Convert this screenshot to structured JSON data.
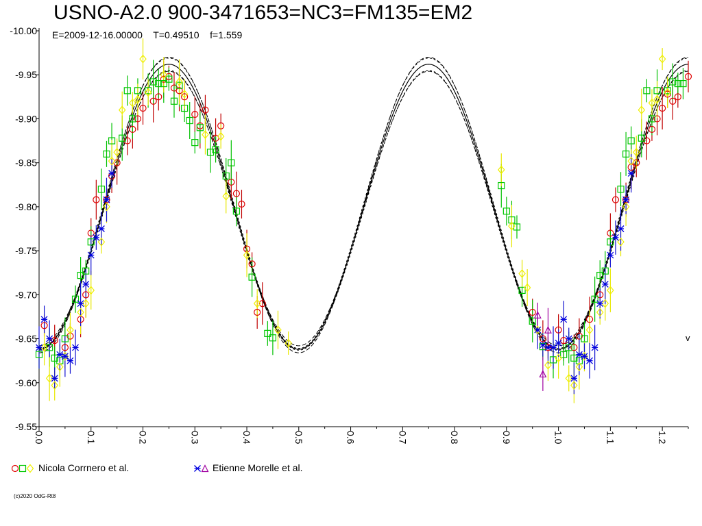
{
  "chart_data": {
    "type": "scatter",
    "title": "USNO-A2.0 900-3471653=NC3=FM135=EM2",
    "subtitle": "E=2009-12-16.00000    T=0.49510    f=1.559",
    "x_range": [
      0.0,
      1.25
    ],
    "y_range": [
      -10.0,
      -9.55
    ],
    "y_ticks": [
      "-10.00",
      "-9.95",
      "-9.90",
      "-9.85",
      "-9.80",
      "-9.75",
      "-9.70",
      "-9.65",
      "-9.60",
      "-9.55"
    ],
    "x_ticks": [
      "0.0",
      "0.1",
      "0.2",
      "0.3",
      "0.4",
      "0.5",
      "0.6",
      "0.7",
      "0.8",
      "0.9",
      "1.0",
      "1.1",
      "1.2"
    ],
    "model": {
      "mean": -9.8,
      "amplitude": 0.162,
      "peak_phase": 0.25
    },
    "legend": [
      {
        "label": "Nicola Corrnero et al.",
        "markers": [
          "circle",
          "square",
          "diamond"
        ],
        "colors": [
          "#e00000",
          "#00c800",
          "#f0f000"
        ]
      },
      {
        "label": "Etienne Morelle et al.",
        "markers": [
          "star",
          "triangle"
        ],
        "colors": [
          "#0000e0",
          "#a000a0"
        ]
      }
    ],
    "series": [
      {
        "marker": "circle",
        "color": "#e00000",
        "err_color": "#c00000",
        "points": [
          [
            0.01,
            -9.665
          ],
          [
            0.03,
            -9.648
          ],
          [
            0.05,
            -9.64
          ],
          [
            0.06,
            -9.653
          ],
          [
            0.08,
            -9.672
          ],
          [
            0.09,
            -9.7
          ],
          [
            0.1,
            -9.77
          ],
          [
            0.11,
            -9.808
          ],
          [
            0.13,
            -9.808
          ],
          [
            0.14,
            -9.835
          ],
          [
            0.15,
            -9.85
          ],
          [
            0.17,
            -9.875
          ],
          [
            0.18,
            -9.888
          ],
          [
            0.19,
            -9.9
          ],
          [
            0.2,
            -9.912
          ],
          [
            0.22,
            -9.92
          ],
          [
            0.23,
            -9.925
          ],
          [
            0.24,
            -9.945
          ],
          [
            0.25,
            -9.948
          ],
          [
            0.26,
            -9.935
          ],
          [
            0.27,
            -9.932
          ],
          [
            0.28,
            -9.925
          ],
          [
            0.3,
            -9.905
          ],
          [
            0.31,
            -9.892
          ],
          [
            0.32,
            -9.91
          ],
          [
            0.34,
            -9.878
          ],
          [
            0.35,
            -9.892
          ],
          [
            0.37,
            -9.828
          ],
          [
            0.38,
            -9.815
          ],
          [
            0.39,
            -9.803
          ],
          [
            0.4,
            -9.752
          ],
          [
            0.41,
            -9.735
          ],
          [
            0.42,
            -9.68
          ],
          [
            0.43,
            -9.69
          ],
          [
            0.95,
            -9.68
          ],
          [
            0.97,
            -9.65
          ],
          [
            0.98,
            -9.64
          ],
          [
            1.0,
            -9.66
          ],
          [
            1.01,
            -9.648
          ],
          [
            1.03,
            -9.64
          ],
          [
            1.04,
            -9.653
          ],
          [
            1.06,
            -9.672
          ],
          [
            1.08,
            -9.7
          ],
          [
            1.1,
            -9.77
          ],
          [
            1.11,
            -9.808
          ],
          [
            1.13,
            -9.808
          ],
          [
            1.14,
            -9.845
          ],
          [
            1.15,
            -9.85
          ],
          [
            1.17,
            -9.875
          ],
          [
            1.18,
            -9.888
          ],
          [
            1.19,
            -9.9
          ],
          [
            1.2,
            -9.912
          ],
          [
            1.21,
            -9.928
          ],
          [
            1.22,
            -9.92
          ],
          [
            1.23,
            -9.925
          ],
          [
            1.25,
            -9.948
          ]
        ]
      },
      {
        "marker": "square",
        "color": "#00c800",
        "err_color": "#00c000",
        "points": [
          [
            0.0,
            -9.632
          ],
          [
            0.02,
            -9.64
          ],
          [
            0.03,
            -9.628
          ],
          [
            0.04,
            -9.625
          ],
          [
            0.05,
            -9.65
          ],
          [
            0.07,
            -9.695
          ],
          [
            0.08,
            -9.722
          ],
          [
            0.09,
            -9.727
          ],
          [
            0.1,
            -9.76
          ],
          [
            0.12,
            -9.82
          ],
          [
            0.13,
            -9.86
          ],
          [
            0.14,
            -9.875
          ],
          [
            0.16,
            -9.878
          ],
          [
            0.17,
            -9.932
          ],
          [
            0.18,
            -9.9
          ],
          [
            0.19,
            -9.932
          ],
          [
            0.21,
            -9.932
          ],
          [
            0.22,
            -9.942
          ],
          [
            0.23,
            -9.94
          ],
          [
            0.24,
            -9.94
          ],
          [
            0.25,
            -9.945
          ],
          [
            0.26,
            -9.92
          ],
          [
            0.27,
            -9.938
          ],
          [
            0.28,
            -9.912
          ],
          [
            0.29,
            -9.898
          ],
          [
            0.3,
            -9.873
          ],
          [
            0.31,
            -9.89
          ],
          [
            0.33,
            -9.862
          ],
          [
            0.34,
            -9.865
          ],
          [
            0.36,
            -9.835
          ],
          [
            0.37,
            -9.85
          ],
          [
            0.38,
            -9.795
          ],
          [
            0.41,
            -9.72
          ],
          [
            0.44,
            -9.656
          ],
          [
            0.45,
            -9.651
          ],
          [
            0.89,
            -9.824
          ],
          [
            0.9,
            -9.795
          ],
          [
            0.91,
            -9.785
          ],
          [
            0.92,
            -9.777
          ],
          [
            0.93,
            -9.705
          ],
          [
            0.95,
            -9.67
          ],
          [
            0.97,
            -9.641
          ],
          [
            0.99,
            -9.626
          ],
          [
            1.01,
            -9.632
          ],
          [
            1.02,
            -9.64
          ],
          [
            1.03,
            -9.628
          ],
          [
            1.04,
            -9.625
          ],
          [
            1.05,
            -9.65
          ],
          [
            1.07,
            -9.695
          ],
          [
            1.08,
            -9.722
          ],
          [
            1.09,
            -9.727
          ],
          [
            1.1,
            -9.76
          ],
          [
            1.12,
            -9.82
          ],
          [
            1.13,
            -9.86
          ],
          [
            1.14,
            -9.875
          ],
          [
            1.16,
            -9.878
          ],
          [
            1.17,
            -9.932
          ],
          [
            1.18,
            -9.9
          ],
          [
            1.19,
            -9.932
          ],
          [
            1.21,
            -9.932
          ],
          [
            1.22,
            -9.942
          ],
          [
            1.23,
            -9.94
          ],
          [
            1.24,
            -9.94
          ]
        ]
      },
      {
        "marker": "diamond",
        "color": "#f0f000",
        "err_color": "#e8e800",
        "points": [
          [
            0.01,
            -9.64
          ],
          [
            0.02,
            -9.605
          ],
          [
            0.03,
            -9.597
          ],
          [
            0.04,
            -9.618
          ],
          [
            0.05,
            -9.63
          ],
          [
            0.06,
            -9.66
          ],
          [
            0.08,
            -9.68
          ],
          [
            0.09,
            -9.69
          ],
          [
            0.1,
            -9.705
          ],
          [
            0.12,
            -9.76
          ],
          [
            0.13,
            -9.8
          ],
          [
            0.14,
            -9.852
          ],
          [
            0.15,
            -9.862
          ],
          [
            0.16,
            -9.91
          ],
          [
            0.18,
            -9.918
          ],
          [
            0.19,
            -9.922
          ],
          [
            0.2,
            -9.968
          ],
          [
            0.21,
            -9.93
          ],
          [
            0.24,
            -9.95
          ],
          [
            0.27,
            -9.942
          ],
          [
            0.28,
            -9.928
          ],
          [
            0.32,
            -9.882
          ],
          [
            0.35,
            -9.88
          ],
          [
            0.36,
            -9.812
          ],
          [
            0.4,
            -9.745
          ],
          [
            0.42,
            -9.69
          ],
          [
            0.46,
            -9.66
          ],
          [
            0.48,
            -9.645
          ],
          [
            0.89,
            -9.842
          ],
          [
            0.91,
            -9.778
          ],
          [
            0.93,
            -9.724
          ],
          [
            0.94,
            -9.708
          ],
          [
            0.96,
            -9.66
          ],
          [
            0.98,
            -9.62
          ],
          [
            1.0,
            -9.628
          ],
          [
            1.02,
            -9.605
          ],
          [
            1.03,
            -9.597
          ],
          [
            1.04,
            -9.618
          ],
          [
            1.05,
            -9.63
          ],
          [
            1.06,
            -9.66
          ],
          [
            1.08,
            -9.68
          ],
          [
            1.09,
            -9.69
          ],
          [
            1.1,
            -9.705
          ],
          [
            1.12,
            -9.76
          ],
          [
            1.13,
            -9.8
          ],
          [
            1.14,
            -9.852
          ],
          [
            1.15,
            -9.862
          ],
          [
            1.16,
            -9.91
          ],
          [
            1.18,
            -9.918
          ],
          [
            1.19,
            -9.922
          ],
          [
            1.2,
            -9.968
          ],
          [
            1.21,
            -9.93
          ]
        ]
      },
      {
        "marker": "star",
        "color": "#0000e0",
        "err_color": "#1010d0",
        "points": [
          [
            0.0,
            -9.64
          ],
          [
            0.01,
            -9.672
          ],
          [
            0.02,
            -9.65
          ],
          [
            0.03,
            -9.605
          ],
          [
            0.04,
            -9.632
          ],
          [
            0.05,
            -9.63
          ],
          [
            0.06,
            -9.625
          ],
          [
            0.07,
            -9.64
          ],
          [
            0.08,
            -9.69
          ],
          [
            0.09,
            -9.712
          ],
          [
            0.1,
            -9.745
          ],
          [
            0.11,
            -9.765
          ],
          [
            0.12,
            -9.775
          ],
          [
            0.13,
            -9.808
          ],
          [
            0.14,
            -9.838
          ],
          [
            0.96,
            -9.66
          ],
          [
            0.97,
            -9.643
          ],
          [
            0.98,
            -9.64
          ],
          [
            0.99,
            -9.64
          ],
          [
            1.0,
            -9.645
          ],
          [
            1.01,
            -9.672
          ],
          [
            1.02,
            -9.65
          ],
          [
            1.03,
            -9.605
          ],
          [
            1.04,
            -9.632
          ],
          [
            1.05,
            -9.63
          ],
          [
            1.06,
            -9.625
          ],
          [
            1.07,
            -9.64
          ],
          [
            1.08,
            -9.69
          ],
          [
            1.09,
            -9.712
          ],
          [
            1.1,
            -9.745
          ],
          [
            1.11,
            -9.765
          ],
          [
            1.12,
            -9.775
          ],
          [
            1.13,
            -9.808
          ],
          [
            1.14,
            -9.838
          ]
        ]
      },
      {
        "marker": "triangle",
        "color": "#a000a0",
        "err_color": "#a000a0",
        "points": [
          [
            0.96,
            -9.677
          ],
          [
            0.97,
            -9.61
          ],
          [
            0.98,
            -9.66
          ]
        ]
      }
    ]
  },
  "page": {
    "legend1_label": "Nicola Corrnero et al.",
    "legend2_label": "Etienne Morelle et al.",
    "copyright": "(c)2020 OdG-Rt8",
    "edge_mark": "v"
  }
}
